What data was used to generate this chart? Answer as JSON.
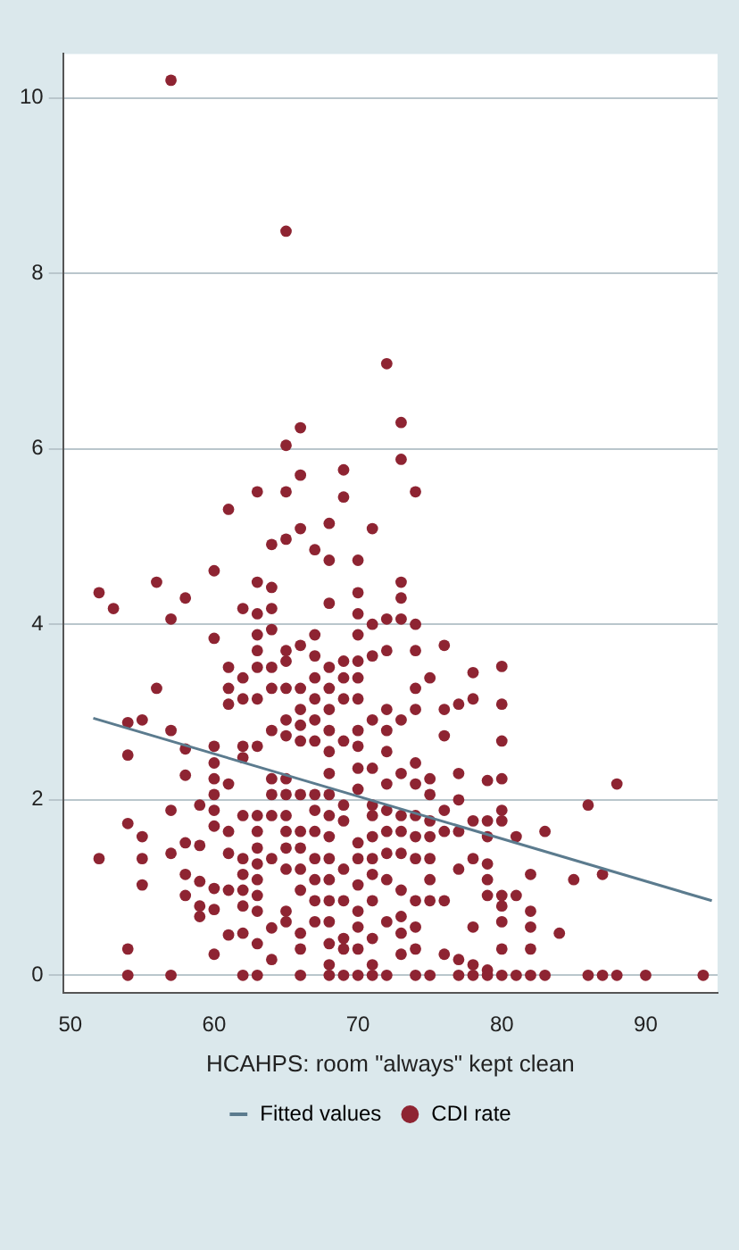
{
  "chart_data": {
    "type": "scatter",
    "xlabel": "HCAHPS: room \"always\" kept clean",
    "xlim": [
      49.5,
      95
    ],
    "xticks": [
      50,
      60,
      70,
      80,
      90
    ],
    "ylim": [
      -0.2,
      10.5
    ],
    "yticks": [
      0,
      2,
      4,
      6,
      8,
      10
    ],
    "grid": "y",
    "legend": "bottom",
    "series": [
      {
        "name": "Fitted values",
        "type": "line",
        "color": "#5b7b8e",
        "marker": "none",
        "line_style": "solid",
        "x": [
          51.6,
          94.6
        ],
        "values": [
          2.93,
          0.85
        ]
      },
      {
        "name": "CDI rate",
        "type": "scatter",
        "marker": "circle",
        "color": "#8e2432",
        "x": [
          52,
          52,
          53,
          54,
          54,
          54,
          54,
          54,
          55,
          55,
          55,
          55,
          56,
          56,
          57,
          57,
          57,
          57,
          57,
          57,
          58,
          58,
          58,
          58,
          58,
          58,
          59,
          59,
          59,
          59,
          59,
          60,
          60,
          60,
          60,
          60,
          60,
          60,
          60,
          60,
          60,
          60,
          61,
          61,
          61,
          61,
          61,
          61,
          61,
          61,
          61,
          62,
          62,
          62,
          62,
          62,
          62,
          62,
          62,
          62,
          62,
          62,
          62,
          63,
          63,
          63,
          63,
          63,
          63,
          63,
          63,
          63,
          63,
          63,
          63,
          63,
          63,
          63,
          63,
          63,
          64,
          64,
          64,
          64,
          64,
          64,
          64,
          64,
          64,
          64,
          64,
          64,
          64,
          65,
          65,
          65,
          65,
          65,
          65,
          65,
          65,
          65,
          65,
          65,
          65,
          65,
          65,
          65,
          65,
          65,
          66,
          66,
          66,
          66,
          66,
          66,
          66,
          66,
          66,
          66,
          66,
          66,
          66,
          66,
          66,
          66,
          67,
          67,
          67,
          67,
          67,
          67,
          67,
          67,
          67,
          67,
          67,
          67,
          67,
          67,
          68,
          68,
          68,
          68,
          68,
          68,
          68,
          68,
          68,
          68,
          68,
          68,
          68,
          68,
          68,
          68,
          68,
          68,
          68,
          69,
          69,
          69,
          69,
          69,
          69,
          69,
          69,
          69,
          69,
          69,
          69,
          69,
          70,
          70,
          70,
          70,
          70,
          70,
          70,
          70,
          70,
          70,
          70,
          70,
          70,
          70,
          70,
          70,
          70,
          70,
          71,
          71,
          71,
          71,
          71,
          71,
          71,
          71,
          71,
          71,
          71,
          71,
          71,
          71,
          72,
          72,
          72,
          72,
          72,
          72,
          72,
          72,
          72,
          72,
          72,
          72,
          72,
          73,
          73,
          73,
          73,
          73,
          73,
          73,
          73,
          73,
          73,
          73,
          73,
          73,
          73,
          74,
          74,
          74,
          74,
          74,
          74,
          74,
          74,
          74,
          74,
          74,
          74,
          74,
          74,
          75,
          75,
          75,
          75,
          75,
          75,
          75,
          75,
          75,
          76,
          76,
          76,
          76,
          76,
          76,
          76,
          77,
          77,
          77,
          77,
          77,
          77,
          77,
          78,
          78,
          78,
          78,
          78,
          78,
          78,
          79,
          79,
          79,
          79,
          79,
          79,
          79,
          79,
          80,
          80,
          80,
          80,
          80,
          80,
          80,
          80,
          80,
          80,
          80,
          81,
          81,
          81,
          82,
          82,
          82,
          82,
          82,
          83,
          83,
          84,
          85,
          86,
          86,
          87,
          87,
          88,
          88,
          90,
          94
        ],
        "values": [
          1.33,
          4.36,
          4.18,
          0,
          0.3,
          1.73,
          2.51,
          2.88,
          1.03,
          1.33,
          1.58,
          2.91,
          3.27,
          4.48,
          0,
          1.39,
          1.88,
          2.79,
          4.06,
          10.2,
          0.91,
          1.15,
          1.51,
          2.28,
          2.58,
          4.3,
          0.67,
          0.79,
          1.07,
          1.48,
          1.94,
          0.24,
          0.75,
          0.99,
          1.7,
          1.88,
          2.06,
          2.24,
          2.42,
          2.61,
          3.84,
          4.61,
          0.46,
          0.97,
          1.39,
          1.64,
          2.18,
          3.09,
          3.27,
          3.51,
          5.31,
          0,
          0.48,
          0.79,
          0.97,
          1.15,
          1.33,
          1.82,
          2.48,
          2.61,
          3.15,
          3.39,
          4.18,
          0,
          0.36,
          0.73,
          0.91,
          1.09,
          1.27,
          1.45,
          1.64,
          1.82,
          2.61,
          3.15,
          3.51,
          3.7,
          3.88,
          4.12,
          4.48,
          5.51,
          0.18,
          0.54,
          1.33,
          1.82,
          2.06,
          2.24,
          2.79,
          3.27,
          3.51,
          3.94,
          4.18,
          4.42,
          4.91,
          0.61,
          0.73,
          1.21,
          1.45,
          1.64,
          1.82,
          2.06,
          2.24,
          2.73,
          2.91,
          3.27,
          3.58,
          3.7,
          4.97,
          5.51,
          6.04,
          8.48,
          0,
          0.3,
          0.48,
          0.97,
          1.21,
          1.45,
          1.64,
          2.06,
          2.67,
          2.85,
          3.03,
          3.27,
          3.76,
          5.09,
          5.7,
          6.24,
          0.61,
          0.85,
          1.09,
          1.33,
          1.64,
          1.88,
          2.06,
          2.67,
          2.91,
          3.15,
          3.39,
          3.64,
          3.88,
          4.85,
          0,
          0.12,
          0.36,
          0.61,
          0.85,
          1.09,
          1.33,
          1.58,
          1.82,
          2.06,
          2.3,
          2.55,
          2.79,
          3.03,
          3.27,
          3.51,
          4.24,
          4.73,
          5.15,
          0,
          0.3,
          0.42,
          0.85,
          1.21,
          1.76,
          1.94,
          2.67,
          3.15,
          3.39,
          3.58,
          5.45,
          5.76,
          0,
          0.3,
          0.55,
          0.73,
          1.03,
          1.33,
          1.51,
          2.12,
          2.36,
          2.61,
          2.79,
          3.15,
          3.39,
          3.58,
          3.88,
          4.12,
          4.36,
          4.73,
          0,
          0.12,
          0.42,
          0.85,
          1.15,
          1.33,
          1.58,
          1.82,
          1.94,
          2.36,
          2.91,
          3.64,
          4,
          5.09,
          0,
          0.61,
          1.09,
          1.39,
          1.64,
          1.88,
          2.18,
          2.55,
          2.79,
          3.03,
          3.7,
          4.06,
          6.97,
          0.24,
          0.48,
          0.67,
          0.97,
          1.39,
          1.64,
          1.82,
          2.3,
          2.91,
          4.06,
          4.3,
          4.48,
          5.88,
          6.3,
          0,
          0.3,
          0.55,
          0.85,
          1.33,
          1.58,
          1.82,
          2.18,
          2.42,
          3.03,
          3.27,
          3.7,
          4,
          5.51,
          0,
          0.85,
          1.09,
          1.33,
          1.58,
          1.76,
          2.06,
          2.24,
          3.39,
          0.24,
          0.85,
          1.64,
          1.88,
          2.73,
          3.03,
          3.76,
          0,
          0.18,
          1.21,
          1.64,
          2,
          2.3,
          3.09,
          0,
          0.12,
          0.55,
          1.33,
          1.76,
          3.15,
          3.45,
          0,
          0.06,
          0.91,
          1.09,
          1.27,
          1.58,
          1.76,
          2.22,
          0,
          0.3,
          0.61,
          0.79,
          0.91,
          1.76,
          1.88,
          2.24,
          2.67,
          3.09,
          3.52,
          0,
          0.91,
          1.58,
          0,
          0.3,
          0.55,
          0.73,
          1.15,
          0,
          1.64,
          0.48,
          1.09,
          0,
          1.94,
          0,
          1.15,
          0,
          2.18,
          0,
          0
        ]
      }
    ]
  }
}
